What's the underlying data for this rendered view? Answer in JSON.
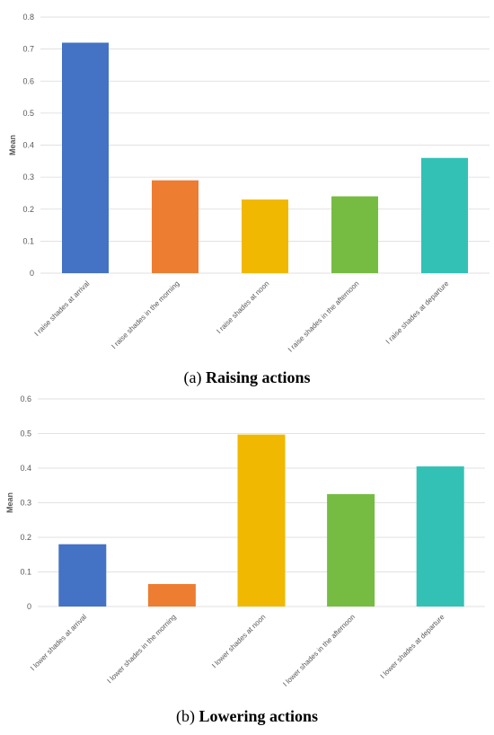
{
  "chart_data": [
    {
      "type": "bar",
      "caption_prefix": "(a)",
      "caption_title": "Raising actions",
      "ylabel": "Mean",
      "xlabel": "",
      "ylim": [
        0,
        0.8
      ],
      "yticks": [
        "0",
        "0.1",
        "0.2",
        "0.3",
        "0.4",
        "0.5",
        "0.6",
        "0.7",
        "0.8"
      ],
      "grid": true,
      "categories": [
        "I raise shades at arrival",
        "I raise shades in the morning",
        "I raise shades at noon",
        "I raise shades in the afternoon",
        "I raise shades at departure"
      ],
      "values": [
        0.72,
        0.29,
        0.23,
        0.24,
        0.36
      ],
      "colors": [
        "#4472C4",
        "#ED7D31",
        "#F0B800",
        "#76BC43",
        "#33C1B5"
      ]
    },
    {
      "type": "bar",
      "caption_prefix": "(b)",
      "caption_title": "Lowering actions",
      "ylabel": "Mean",
      "xlabel": "",
      "ylim": [
        0,
        0.6
      ],
      "yticks": [
        "0",
        "0.1",
        "0.2",
        "0.3",
        "0.4",
        "0.5",
        "0.6"
      ],
      "grid": true,
      "categories": [
        "I lower shades at arrival",
        "I lower shades in the morning",
        "I lower shades at noon",
        "I lower shades in the afternoon",
        "I lower shades at departure"
      ],
      "values": [
        0.18,
        0.065,
        0.497,
        0.325,
        0.405
      ],
      "colors": [
        "#4472C4",
        "#ED7D31",
        "#F0B800",
        "#76BC43",
        "#33C1B5"
      ]
    }
  ]
}
